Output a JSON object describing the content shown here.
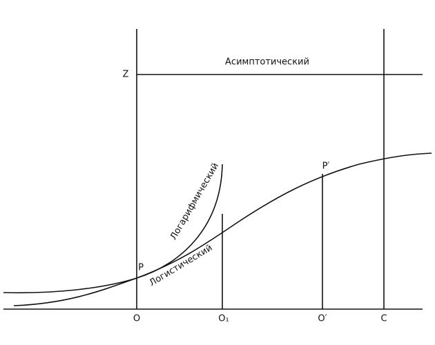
{
  "asymptote": {
    "label": "Асимптотический",
    "point": "Z"
  },
  "curves": [
    {
      "label": "Логарифмический"
    },
    {
      "label": "Логистический"
    }
  ],
  "points": {
    "p": "P",
    "p_prime": "P′"
  },
  "baseline": [
    "O",
    "O₁",
    "O′",
    "C"
  ]
}
